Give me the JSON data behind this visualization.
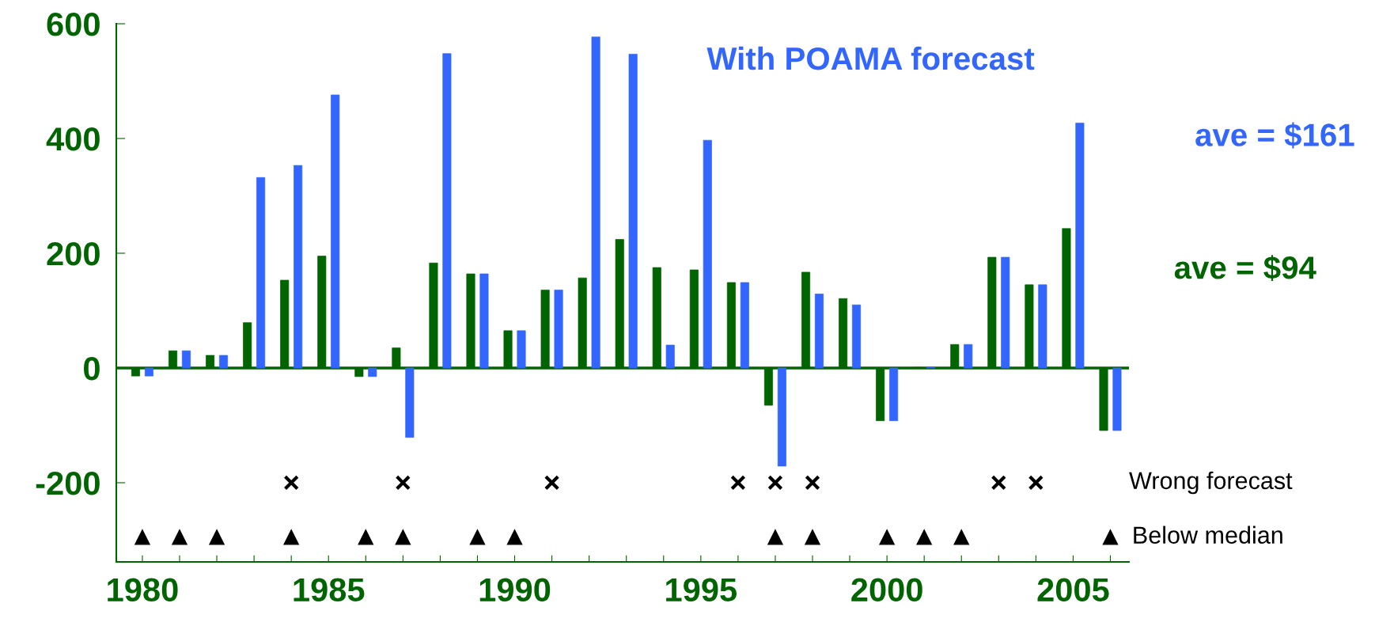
{
  "chart_data": {
    "type": "bar",
    "x": [
      1980,
      1981,
      1982,
      1983,
      1984,
      1985,
      1986,
      1987,
      1988,
      1989,
      1990,
      1991,
      1992,
      1993,
      1994,
      1995,
      1996,
      1997,
      1998,
      1999,
      2000,
      2001,
      2002,
      2003,
      2004,
      2005,
      2006
    ],
    "series": [
      {
        "color": "#006400",
        "values": [
          -14,
          30,
          22,
          79,
          153,
          195,
          -15,
          35,
          183,
          164,
          65,
          136,
          157,
          224,
          175,
          171,
          149,
          -65,
          167,
          121,
          -92,
          1,
          41,
          193,
          145,
          243,
          -109
        ]
      },
      {
        "name": "With POAMA forecast",
        "color": "#3366ff",
        "values": [
          -14,
          30,
          22,
          332,
          353,
          476,
          -15,
          -121,
          548,
          164,
          65,
          136,
          577,
          547,
          40,
          397,
          149,
          -171,
          129,
          110,
          -92,
          1,
          41,
          193,
          145,
          427,
          -109
        ]
      },
      {
        "name": "Wrong forecast",
        "type": "scatter",
        "marker": "cross",
        "color": "#000000",
        "x": [
          1984,
          1987,
          1991,
          1996,
          1997,
          1998,
          2003,
          2004
        ],
        "values": [
          -200,
          -200,
          -200,
          -200,
          -200,
          -200,
          -200,
          -200
        ]
      },
      {
        "name": "Below median",
        "type": "scatter",
        "marker": "triangle",
        "color": "#000000",
        "x": [
          1980,
          1981,
          1982,
          1984,
          1986,
          1987,
          1989,
          1990,
          1997,
          1998,
          2000,
          2001,
          2002,
          2006
        ],
        "values": [
          -295,
          -295,
          -295,
          -295,
          -295,
          -295,
          -295,
          -295,
          -295,
          -295,
          -295,
          -295,
          -295,
          -295
        ]
      }
    ],
    "xlim": [
      1979.3,
      2006.5
    ],
    "xticks": [
      1980,
      {
        "value": 1981,
        "label": null
      },
      {
        "value": 1982,
        "label": null
      },
      {
        "value": 1983,
        "label": null
      },
      {
        "value": 1984,
        "label": null
      },
      1985,
      {
        "value": 1986,
        "label": null
      },
      {
        "value": 1987,
        "label": null
      },
      {
        "value": 1988,
        "label": null
      },
      {
        "value": 1989,
        "label": null
      },
      1990,
      {
        "value": 1991,
        "label": null
      },
      {
        "value": 1992,
        "label": null
      },
      {
        "value": 1993,
        "label": null
      },
      {
        "value": 1994,
        "label": null
      },
      1995,
      {
        "value": 1996,
        "label": null
      },
      {
        "value": 1997,
        "label": null
      },
      {
        "value": 1998,
        "label": null
      },
      {
        "value": 1999,
        "label": null
      },
      2000,
      {
        "value": 2001,
        "label": null
      },
      {
        "value": 2002,
        "label": null
      },
      {
        "value": 2003,
        "label": null
      },
      {
        "value": 2004,
        "label": null
      },
      2005,
      {
        "value": 2006,
        "label": null
      }
    ],
    "ylim": [
      -338,
      600
    ],
    "yticks": [
      -200,
      0,
      200,
      400,
      600
    ],
    "ref_lines": [
      {
        "axis": "y",
        "value": 0,
        "color": "#006400"
      }
    ],
    "annotations": [
      "ave = $161",
      "ave = $94"
    ],
    "grid": false,
    "legend": false
  }
}
